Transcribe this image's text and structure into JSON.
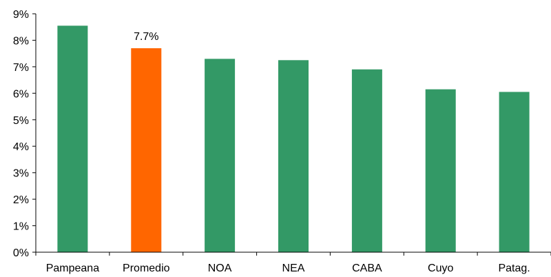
{
  "chart_data": {
    "type": "bar",
    "title": "",
    "xlabel": "",
    "ylabel": "",
    "categories": [
      "Pampeana",
      "Promedio",
      "NOA",
      "NEA",
      "CABA",
      "Cuyo",
      "Patag."
    ],
    "values": [
      8.55,
      7.7,
      7.3,
      7.25,
      6.9,
      6.15,
      6.05
    ],
    "value_unit": "%",
    "highlight_category": "Promedio",
    "data_labels": [
      {
        "category": "Promedio",
        "text": "7.7%"
      }
    ],
    "ylim": [
      0,
      9
    ],
    "yticks": [
      "0%",
      "1%",
      "2%",
      "3%",
      "4%",
      "5%",
      "6%",
      "7%",
      "8%",
      "9%"
    ],
    "grid": false,
    "legend": "none",
    "colors": {
      "bar": "#339966",
      "highlight": "#FF6600",
      "axis": "#000000"
    }
  }
}
